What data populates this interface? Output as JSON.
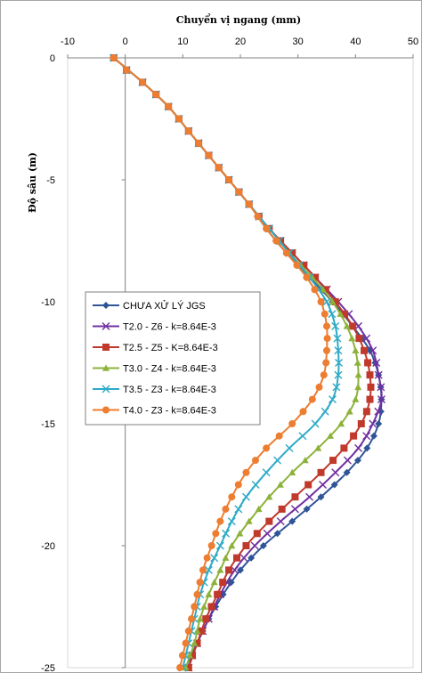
{
  "chart_data": {
    "type": "line",
    "title": "",
    "xlabel": "Chuyển vị ngang  (mm)",
    "ylabel": "Độ sâu (m)",
    "xlim": [
      -10,
      50
    ],
    "ylim": [
      -25,
      0
    ],
    "xticks": [
      -10,
      0,
      10,
      20,
      30,
      40,
      50
    ],
    "yticks": [
      0,
      -5,
      -10,
      -15,
      -20,
      -25
    ],
    "x_axis_position": "top",
    "grid": false,
    "legend_position": "middle-left",
    "series": [
      {
        "name": "CHƯA XỬ LÝ JGS",
        "color": "#2f5597",
        "marker": "diamond",
        "depth": [
          0,
          -1,
          -2,
          -3,
          -4,
          -5,
          -6,
          -7,
          -8,
          -9,
          -10,
          -11,
          -12,
          -13,
          -14,
          -15,
          -16,
          -17,
          -18,
          -19,
          -20,
          -21,
          -22,
          -23,
          -24,
          -25
        ],
        "values": [
          -2,
          3,
          7.5,
          11,
          14.5,
          18,
          21.5,
          24.5,
          28,
          32,
          36,
          39.5,
          42.5,
          44,
          44.5,
          44,
          42,
          38.5,
          34,
          29,
          24,
          20,
          17,
          14.5,
          12.5,
          10.5
        ]
      },
      {
        "name": "T2.0 - Z6 - k=8.64E-3",
        "color": "#7030a0",
        "marker": "x",
        "depth": [
          0,
          -1,
          -2,
          -3,
          -4,
          -5,
          -6,
          -7,
          -8,
          -9,
          -10,
          -11,
          -12,
          -13,
          -14,
          -15,
          -16,
          -17,
          -18,
          -19,
          -20,
          -21,
          -22,
          -23,
          -24,
          -25
        ],
        "values": [
          -2,
          3,
          7.5,
          11,
          14.5,
          18,
          21.5,
          25,
          29,
          33,
          37,
          40.5,
          43,
          44,
          44.5,
          43,
          40.5,
          36.5,
          32,
          27,
          22.5,
          19,
          16.5,
          14.5,
          12.5,
          11
        ]
      },
      {
        "name": "T2.5 - Z5 - K=8.64E-3",
        "color": "#c0392b",
        "marker": "square",
        "depth": [
          0,
          -1,
          -2,
          -3,
          -4,
          -5,
          -6,
          -7,
          -8,
          -9,
          -10,
          -11,
          -12,
          -13,
          -14,
          -15,
          -16,
          -17,
          -18,
          -19,
          -20,
          -21,
          -22,
          -23,
          -24,
          -25
        ],
        "values": [
          -2,
          3,
          7.5,
          11,
          14.5,
          18,
          21.5,
          25,
          29,
          33,
          36.5,
          39.5,
          41.5,
          42.5,
          42.5,
          41,
          38,
          34,
          29.5,
          25,
          21,
          18,
          16,
          14,
          12.5,
          11
        ]
      },
      {
        "name": "T3.0 - Z4 - k=8.64E-3",
        "color": "#8db23a",
        "marker": "triangle",
        "depth": [
          0,
          -1,
          -2,
          -3,
          -4,
          -5,
          -6,
          -7,
          -8,
          -9,
          -10,
          -11,
          -12,
          -13,
          -14,
          -15,
          -16,
          -17,
          -18,
          -19,
          -20,
          -21,
          -22,
          -23,
          -24,
          -25
        ],
        "values": [
          -2,
          3,
          7.5,
          11,
          14.5,
          18,
          21.5,
          25,
          28.5,
          32.5,
          36,
          38.5,
          40,
          40.5,
          40,
          37.5,
          33.5,
          29,
          25,
          21.5,
          18.5,
          16.5,
          14.5,
          13,
          12,
          10.5
        ]
      },
      {
        "name": "T3.5 - Z3 - k=8.64E-3",
        "color": "#2eaac6",
        "marker": "x",
        "depth": [
          0,
          -1,
          -2,
          -3,
          -4,
          -5,
          -6,
          -7,
          -8,
          -9,
          -10,
          -11,
          -12,
          -13,
          -14,
          -15,
          -16,
          -17,
          -18,
          -19,
          -20,
          -21,
          -22,
          -23,
          -24,
          -25
        ],
        "values": [
          -2,
          3,
          7.5,
          11,
          14.5,
          18,
          21.5,
          25,
          28.5,
          32,
          35,
          36.5,
          37,
          37,
          36,
          33,
          28.5,
          24.5,
          21,
          18.5,
          16.5,
          14.5,
          13,
          12,
          11,
          10
        ]
      },
      {
        "name": "T4.0 - Z3 - k=8.64E-3",
        "color": "#ed7d31",
        "marker": "circle",
        "depth": [
          0,
          -1,
          -2,
          -3,
          -4,
          -5,
          -6,
          -7,
          -8,
          -9,
          -10,
          -11,
          -12,
          -13,
          -14,
          -15,
          -16,
          -17,
          -18,
          -19,
          -20,
          -21,
          -22,
          -23,
          -24,
          -25
        ],
        "values": [
          -2,
          3,
          7.5,
          11,
          14.5,
          18,
          21.5,
          24.5,
          28,
          31.5,
          34,
          35,
          35,
          34.5,
          32.5,
          29,
          24.5,
          21,
          18.5,
          16.5,
          15,
          13.5,
          12.5,
          11.5,
          10.5,
          9.5
        ]
      }
    ]
  }
}
